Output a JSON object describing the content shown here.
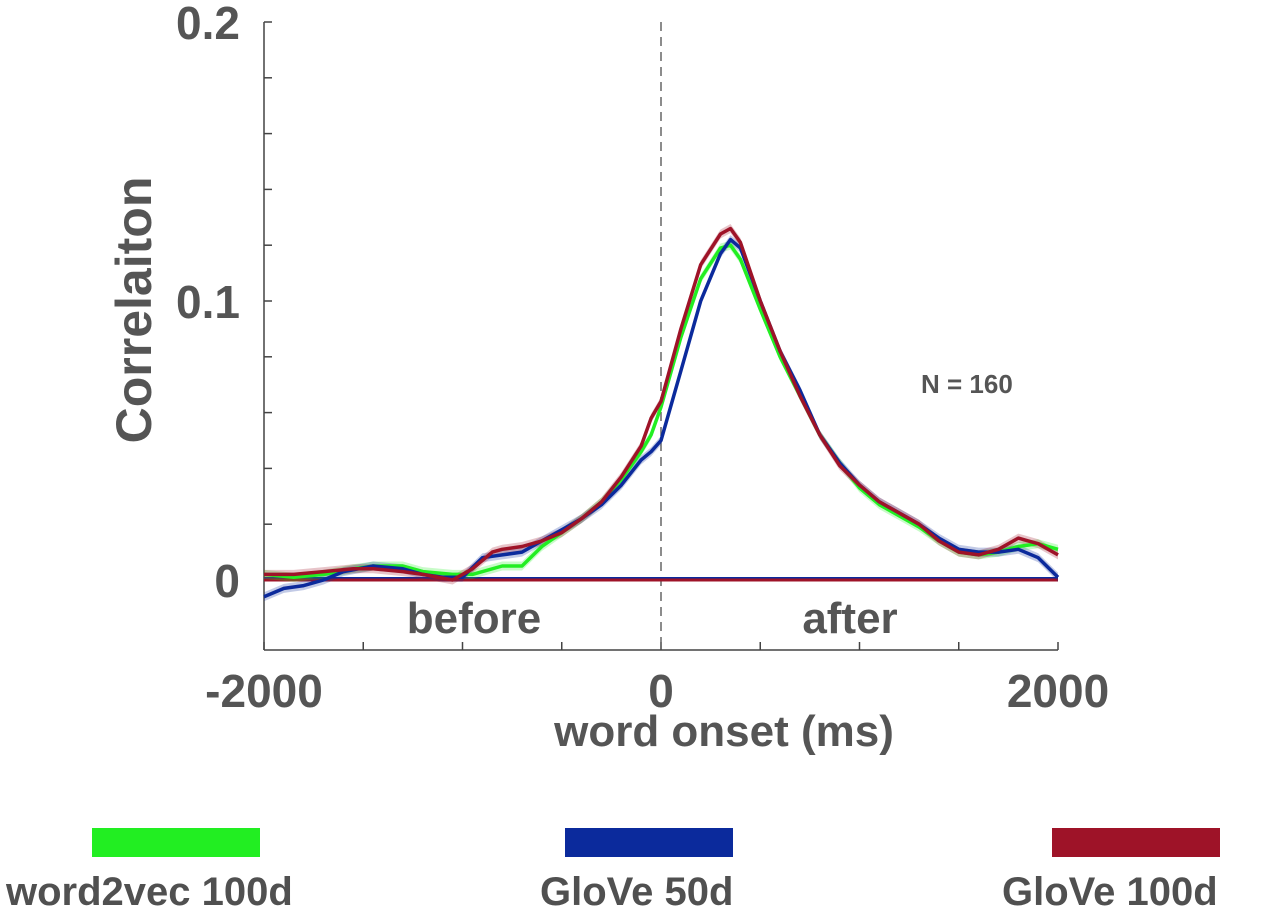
{
  "chart_data": {
    "type": "line",
    "title": "",
    "xlabel": "word onset (ms)",
    "ylabel": "Correlaiton",
    "xlim": [
      -2000,
      2000
    ],
    "ylim": [
      -0.023,
      0.2
    ],
    "x_ticks": [
      -2000,
      -1500,
      -1000,
      -500,
      0,
      500,
      1000,
      1500,
      2000
    ],
    "x_tick_labels": [
      "-2000",
      "0",
      "2000"
    ],
    "x_tick_label_values": [
      -2000,
      0,
      2000
    ],
    "y_ticks": [
      0,
      0.02,
      0.04,
      0.06,
      0.08,
      0.1,
      0.12,
      0.14,
      0.16,
      0.18,
      0.2
    ],
    "y_tick_labels": [
      "0",
      "0.1",
      "0.2"
    ],
    "y_tick_label_values": [
      0,
      0.1,
      0.2
    ],
    "grid": false,
    "legend_position": "bottom",
    "vline_x": 0,
    "annotations": {
      "before": "before",
      "after": "after",
      "n": "N = 160"
    },
    "series": [
      {
        "name": "word2vec 100d",
        "color": "#22ee22",
        "baseline": 0,
        "x": [
          -2000,
          -1850,
          -1700,
          -1550,
          -1450,
          -1300,
          -1200,
          -1050,
          -950,
          -800,
          -700,
          -600,
          -500,
          -400,
          -300,
          -200,
          -100,
          -50,
          0,
          100,
          200,
          300,
          350,
          400,
          500,
          600,
          700,
          800,
          900,
          1000,
          1100,
          1200,
          1300,
          1400,
          1500,
          1600,
          1700,
          1800,
          1900,
          2000
        ],
        "y": [
          0.002,
          0.001,
          0.002,
          0.004,
          0.005,
          0.005,
          0.003,
          0.002,
          0.002,
          0.005,
          0.005,
          0.012,
          0.017,
          0.022,
          0.028,
          0.036,
          0.046,
          0.052,
          0.062,
          0.087,
          0.108,
          0.119,
          0.12,
          0.115,
          0.097,
          0.08,
          0.066,
          0.052,
          0.042,
          0.033,
          0.027,
          0.023,
          0.019,
          0.014,
          0.01,
          0.009,
          0.01,
          0.012,
          0.013,
          0.011
        ]
      },
      {
        "name": "GloVe 50d",
        "color": "#0b2a9c",
        "baseline": 0,
        "x": [
          -2000,
          -1900,
          -1800,
          -1700,
          -1600,
          -1450,
          -1300,
          -1200,
          -1100,
          -1000,
          -900,
          -800,
          -700,
          -600,
          -500,
          -400,
          -300,
          -200,
          -100,
          -50,
          0,
          100,
          200,
          300,
          350,
          400,
          500,
          600,
          700,
          800,
          900,
          1000,
          1100,
          1200,
          1300,
          1400,
          1500,
          1600,
          1700,
          1800,
          1900,
          2000
        ],
        "y": [
          -0.006,
          -0.003,
          -0.002,
          0.0,
          0.003,
          0.005,
          0.004,
          0.002,
          0.001,
          0.001,
          0.008,
          0.009,
          0.01,
          0.014,
          0.018,
          0.022,
          0.027,
          0.034,
          0.043,
          0.046,
          0.05,
          0.075,
          0.1,
          0.117,
          0.122,
          0.119,
          0.1,
          0.082,
          0.068,
          0.052,
          0.042,
          0.034,
          0.028,
          0.024,
          0.02,
          0.015,
          0.011,
          0.01,
          0.01,
          0.011,
          0.008,
          0.001
        ]
      },
      {
        "name": "GloVe 100d",
        "color": "#9e1328",
        "baseline": 0,
        "x": [
          -2000,
          -1850,
          -1700,
          -1550,
          -1450,
          -1300,
          -1200,
          -1050,
          -950,
          -850,
          -800,
          -700,
          -600,
          -500,
          -400,
          -300,
          -200,
          -100,
          -50,
          0,
          100,
          200,
          300,
          350,
          400,
          500,
          600,
          700,
          800,
          900,
          1000,
          1100,
          1200,
          1300,
          1400,
          1500,
          1600,
          1700,
          1800,
          1850,
          1900,
          2000
        ],
        "y": [
          0.002,
          0.002,
          0.003,
          0.004,
          0.004,
          0.003,
          0.002,
          0.0,
          0.004,
          0.01,
          0.011,
          0.012,
          0.014,
          0.017,
          0.022,
          0.028,
          0.037,
          0.048,
          0.058,
          0.064,
          0.09,
          0.113,
          0.124,
          0.126,
          0.121,
          0.1,
          0.082,
          0.066,
          0.052,
          0.041,
          0.034,
          0.028,
          0.024,
          0.02,
          0.014,
          0.01,
          0.009,
          0.011,
          0.015,
          0.014,
          0.013,
          0.009
        ]
      }
    ]
  }
}
